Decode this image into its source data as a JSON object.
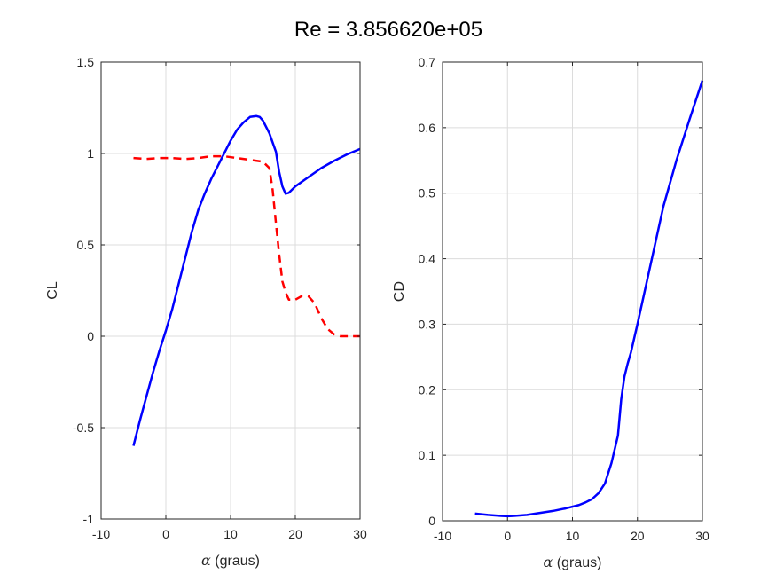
{
  "figure": {
    "title": "Re = 3.856620e+05"
  },
  "colors": {
    "blue": "#0000ff",
    "red": "#ff0000"
  },
  "chart_data": [
    {
      "type": "line",
      "xlabel_symbol": "α",
      "xlabel_text": " (graus)",
      "ylabel": "CL",
      "xlim": [
        -10,
        30
      ],
      "ylim": [
        -1,
        1.5
      ],
      "xticks": [
        -10,
        0,
        10,
        20,
        30
      ],
      "yticks": [
        -1,
        -0.5,
        0,
        0.5,
        1,
        1.5
      ],
      "xtick_labels": [
        "-10",
        "0",
        "10",
        "20",
        "30"
      ],
      "ytick_labels": [
        "-1",
        "-0.5",
        "0",
        "0.5",
        "1",
        "1.5"
      ],
      "grid": true,
      "series": [
        {
          "color": "#0000ff",
          "style": "solid",
          "x": [
            -5,
            -4,
            -3,
            -2,
            -1,
            0,
            1,
            2,
            3,
            4,
            5,
            6,
            7,
            8,
            9,
            10,
            11,
            12,
            13,
            14,
            14.5,
            15,
            16,
            17,
            17.5,
            18,
            18.5,
            19,
            20,
            22,
            24,
            26,
            28,
            30
          ],
          "y": [
            -0.6,
            -0.46,
            -0.33,
            -0.2,
            -0.08,
            0.03,
            0.15,
            0.29,
            0.43,
            0.57,
            0.69,
            0.78,
            0.86,
            0.93,
            1.0,
            1.07,
            1.13,
            1.17,
            1.2,
            1.205,
            1.2,
            1.18,
            1.11,
            1.01,
            0.9,
            0.82,
            0.78,
            0.785,
            0.82,
            0.87,
            0.92,
            0.96,
            0.995,
            1.025
          ]
        },
        {
          "color": "#ff0000",
          "style": "dashed",
          "x": [
            -5,
            -3,
            -1,
            1,
            3,
            5,
            7,
            9,
            11,
            13,
            15,
            16,
            16.5,
            17,
            17.5,
            18,
            18.5,
            19,
            20,
            21,
            22,
            23,
            24,
            25,
            26,
            27,
            28,
            29,
            30
          ],
          "y": [
            0.975,
            0.97,
            0.975,
            0.975,
            0.97,
            0.975,
            0.985,
            0.985,
            0.975,
            0.965,
            0.955,
            0.92,
            0.8,
            0.62,
            0.45,
            0.3,
            0.24,
            0.2,
            0.2,
            0.22,
            0.22,
            0.18,
            0.1,
            0.04,
            0.01,
            0.0,
            0.0,
            0.0,
            0.0
          ]
        }
      ]
    },
    {
      "type": "line",
      "xlabel_symbol": "α",
      "xlabel_text": " (graus)",
      "ylabel": "CD",
      "xlim": [
        -10,
        30
      ],
      "ylim": [
        0,
        0.7
      ],
      "xticks": [
        -10,
        0,
        10,
        20,
        30
      ],
      "yticks": [
        0,
        0.1,
        0.2,
        0.3,
        0.4,
        0.5,
        0.6,
        0.7
      ],
      "xtick_labels": [
        "-10",
        "0",
        "10",
        "20",
        "30"
      ],
      "ytick_labels": [
        "0",
        "0.1",
        "0.2",
        "0.3",
        "0.4",
        "0.5",
        "0.6",
        "0.7"
      ],
      "grid": true,
      "series": [
        {
          "color": "#0000ff",
          "style": "solid",
          "x": [
            -5,
            -3,
            -1,
            0,
            1,
            3,
            5,
            7,
            9,
            11,
            12,
            13,
            14,
            15,
            16,
            17,
            17.5,
            18,
            18.5,
            19,
            20,
            22,
            24,
            26,
            28,
            30
          ],
          "y": [
            0.011,
            0.009,
            0.0075,
            0.007,
            0.0075,
            0.009,
            0.012,
            0.015,
            0.019,
            0.024,
            0.028,
            0.033,
            0.042,
            0.057,
            0.088,
            0.13,
            0.185,
            0.22,
            0.24,
            0.257,
            0.3,
            0.39,
            0.48,
            0.55,
            0.612,
            0.672
          ]
        }
      ]
    }
  ]
}
